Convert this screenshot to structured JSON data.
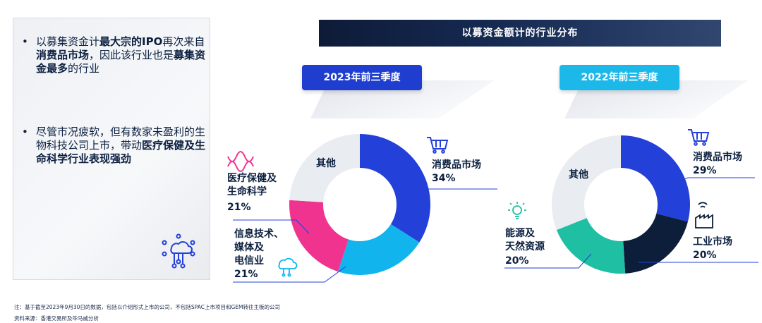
{
  "left_panel": {
    "bullet_marker": "•",
    "bullet1": {
      "parts": [
        {
          "text": "以募集资金计",
          "bold": false
        },
        {
          "text": "最大宗的IPO",
          "bold": true
        },
        {
          "text": "再次来自",
          "bold": false
        },
        {
          "text": "消费品市场",
          "bold": true
        },
        {
          "text": "，因此该行业也是",
          "bold": false
        },
        {
          "text": "募集资金最多",
          "bold": true
        },
        {
          "text": "的行业",
          "bold": false
        }
      ]
    },
    "bullet2": {
      "parts": [
        {
          "text": "尽管市况疲软，但有数家未盈利的生物科技公司上市，带动",
          "bold": false
        },
        {
          "text": "医疗保健及生命科学行业表现强劲",
          "bold": true
        }
      ]
    },
    "icon": "circuit-cloud-icon"
  },
  "header": {
    "title": "以募资金额计的行业分布"
  },
  "badges": {
    "y2023": "2023年前三季度",
    "y2022": "2022年前三季度"
  },
  "colors": {
    "consumer": "#2340d8",
    "tech": "#12b4ee",
    "health": "#f0338e",
    "other": "#e9ecf0",
    "industrial": "#0c1e3a",
    "energy": "#1fbfa4",
    "text": "#0b1f3f"
  },
  "chart_data": [
    {
      "type": "pie",
      "title": "2023年前三季度",
      "donut": true,
      "start_angle_deg": 0,
      "slices": [
        {
          "label": "消费品市场",
          "value": 34,
          "value_label": "34%",
          "color": "#2340d8",
          "icon": "shopping-cart-icon"
        },
        {
          "label": "信息技术、媒体及电信业",
          "value": 21,
          "value_label": "21%",
          "color": "#12b4ee",
          "icon": "cloud-network-icon"
        },
        {
          "label": "医疗保健及生命科学",
          "value": 21,
          "value_label": "21%",
          "color": "#f0338e",
          "icon": "dna-icon"
        },
        {
          "label": "其他",
          "value": 24,
          "value_label": "",
          "color": "#e9ecf0",
          "icon": ""
        }
      ]
    },
    {
      "type": "pie",
      "title": "2022年前三季度",
      "donut": true,
      "start_angle_deg": 0,
      "slices": [
        {
          "label": "消费品市场",
          "value": 29,
          "value_label": "29%",
          "color": "#2340d8",
          "icon": "shopping-cart-icon"
        },
        {
          "label": "工业市场",
          "value": 20,
          "value_label": "20%",
          "color": "#0c1e3a",
          "icon": "factory-icon"
        },
        {
          "label": "能源及天然资源",
          "value": 20,
          "value_label": "20%",
          "color": "#1fbfa4",
          "icon": "lightbulb-icon"
        },
        {
          "label": "其他",
          "value": 31,
          "value_label": "",
          "color": "#e9ecf0",
          "icon": ""
        }
      ]
    }
  ],
  "footnotes": {
    "note": "注：基于截至2023年9月30日的数据，包括以介绍形式上市的公司，不包括SPAC上市项目和GEM转往主板的公司",
    "source": "资料来源：香港交易所及毕马威分析"
  }
}
